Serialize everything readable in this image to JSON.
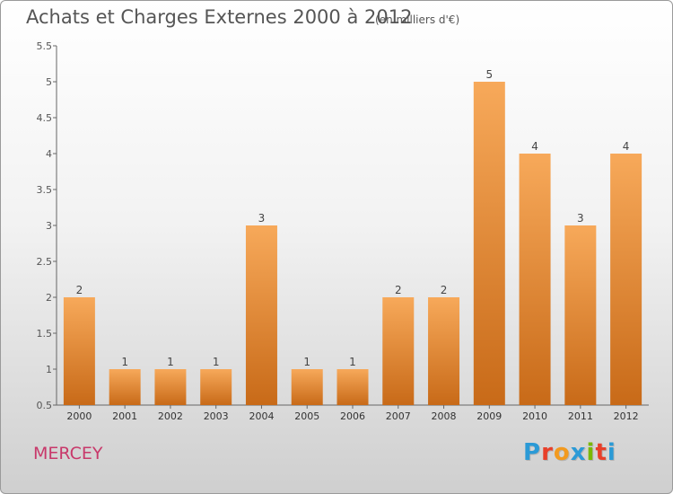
{
  "header": {
    "title": "Achats et Charges Externes 2000 à 2012",
    "unit": "(en milliers d'€)"
  },
  "footer": {
    "commune": "MERCEY",
    "brand_letters": [
      "P",
      "r",
      "o",
      "x",
      "i",
      "t",
      "i"
    ],
    "brand_colors": [
      "#2b9ad6",
      "#e8402a",
      "#f29a1f",
      "#2b9ad6",
      "#7ab800",
      "#e8402a",
      "#2b9ad6"
    ]
  },
  "colors": {
    "bar_top": "#f7a95a",
    "bar_bottom": "#c86a18",
    "axis": "#666666",
    "text": "#555555"
  },
  "chart_data": {
    "type": "bar",
    "title": "Achats et Charges Externes 2000 à 2012",
    "categories": [
      "2000",
      "2001",
      "2002",
      "2003",
      "2004",
      "2005",
      "2006",
      "2007",
      "2008",
      "2009",
      "2010",
      "2011",
      "2012"
    ],
    "values": [
      2,
      1,
      1,
      1,
      3,
      1,
      1,
      2,
      2,
      5,
      4,
      3,
      4
    ],
    "data_labels": [
      "2",
      "1",
      "1",
      "1",
      "3",
      "1",
      "1",
      "2",
      "2",
      "5",
      "4",
      "3",
      "4"
    ],
    "ylim": [
      0.5,
      5.5
    ],
    "yticks": [
      0.5,
      1,
      1.5,
      2,
      2.5,
      3,
      3.5,
      4,
      4.5,
      5,
      5.5
    ],
    "ytick_labels": [
      "0.5",
      "1",
      "1.5",
      "2",
      "2.5",
      "3",
      "3.5",
      "4",
      "4.5",
      "5",
      "5.5"
    ],
    "grid": false,
    "legend": "none"
  }
}
